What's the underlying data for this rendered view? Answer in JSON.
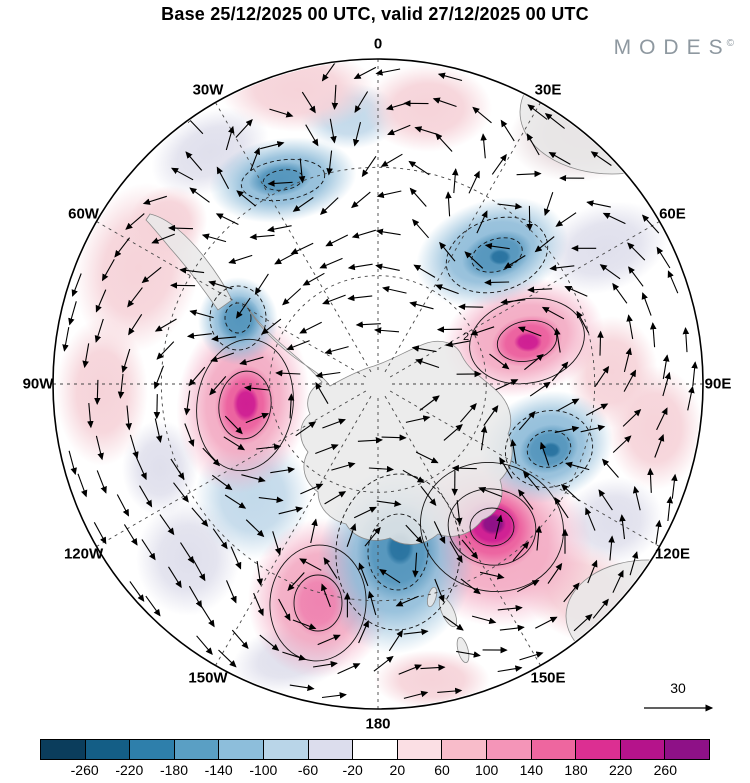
{
  "header": {
    "title": "Base 25/12/2025 00 UTC, valid 27/12/2025 00 UTC",
    "brand": "MODES",
    "brand_mark": "©"
  },
  "map": {
    "longitude_labels": [
      "0",
      "30E",
      "60E",
      "90E",
      "120E",
      "150E",
      "180",
      "150W",
      "120W",
      "90W",
      "60W",
      "30W"
    ],
    "contour_label": "2",
    "reference_arrow_label": "30"
  },
  "chart_data": {
    "type": "heatmap",
    "title": "Base 25/12/2025 00 UTC, valid 27/12/2025 00 UTC",
    "subtitle": "Southern-hemisphere polar stereographic anomaly map with wind vectors",
    "colorbar": {
      "tick_labels": [
        -260,
        -220,
        -180,
        -140,
        -100,
        -60,
        -20,
        20,
        60,
        100,
        140,
        180,
        220,
        260
      ],
      "colors": [
        "#0b3d5c",
        "#145e86",
        "#2e7fab",
        "#5a9fc4",
        "#8dbedb",
        "#b9d5e8",
        "#dcdded",
        "#ffffff",
        "#fbdfe4",
        "#f8bcca",
        "#f495b8",
        "#ee669f",
        "#dc2f92",
        "#b5138b",
        "#8e1187"
      ]
    },
    "vector_scale": {
      "label": "30",
      "value": 30
    },
    "notable_centers": [
      {
        "azimuth": "30W high-lat",
        "sign": "negative",
        "approx_value": -120
      },
      {
        "azimuth": "55E mid-lat",
        "sign": "negative",
        "approx_value": -160
      },
      {
        "azimuth": "75E high-lat",
        "sign": "positive",
        "approx_value": 160
      },
      {
        "azimuth": "100W mid-lat",
        "sign": "positive",
        "approx_value": 170
      },
      {
        "azimuth": "115E mid-lat",
        "sign": "negative",
        "approx_value": -150
      },
      {
        "azimuth": "135E mid-lat",
        "sign": "positive",
        "approx_value": 260
      },
      {
        "azimuth": "175E mid-lat",
        "sign": "negative",
        "approx_value": -180
      },
      {
        "azimuth": "170W mid-lat",
        "sign": "positive",
        "approx_value": 130
      }
    ]
  }
}
